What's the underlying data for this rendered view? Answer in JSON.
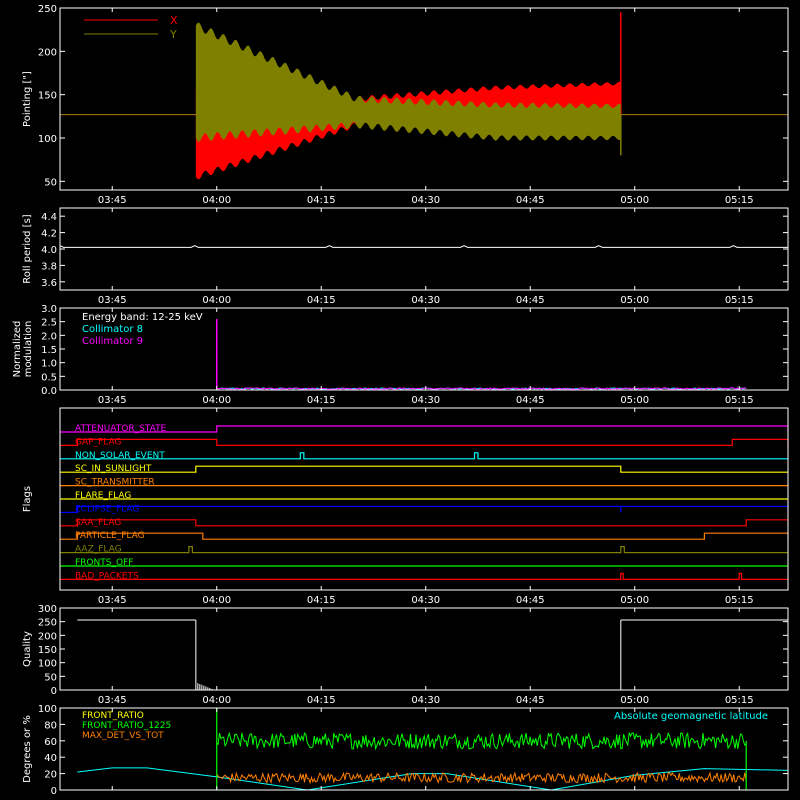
{
  "colors": {
    "background": "#000000",
    "axes": "#ffffff",
    "x_pointing": "#ff0000",
    "y_pointing": "#808000",
    "collimator_8": "#00ffff",
    "collimator_9": "#ff00ff",
    "front_ratio": "#ffff00",
    "front_ratio_1225": "#00ff00",
    "max_det_vs_tot": "#ff8000",
    "geomagnetic_latitude": "#00ffff"
  },
  "time_axis": {
    "tick_labels": [
      "03:45",
      "04:00",
      "04:15",
      "04:30",
      "04:45",
      "05:00",
      "05:15"
    ]
  },
  "chart_data": [
    {
      "type": "line",
      "panel": "pointing",
      "ylabel": "Pointing [\"]",
      "ylim": [
        40,
        250
      ],
      "yticks": [
        50,
        100,
        150,
        200,
        250
      ],
      "xlabels": [
        "03:45",
        "04:00",
        "04:15",
        "04:30",
        "04:45",
        "05:00",
        "05:15"
      ],
      "legend_placement": "top-left",
      "series": [
        {
          "name": "X",
          "baseline": 127,
          "segments": [
            {
              "x": [
                "03:57",
                "04:20",
                "04:40",
                "04:58"
              ],
              "upper": [
                160,
                145,
                158,
                163
              ],
              "lower": [
                55,
                115,
                125,
                128
              ]
            }
          ],
          "spike": {
            "x": "04:58",
            "value": 245
          }
        },
        {
          "name": "Y",
          "baseline": 127,
          "segments": [
            {
              "x": [
                "03:57",
                "04:20",
                "04:40",
                "04:58"
              ],
              "upper": [
                230,
                145,
                138,
                137
              ],
              "lower": [
                100,
                115,
                100,
                100
              ]
            }
          ],
          "spike": {
            "x": "04:58",
            "value": 80
          }
        }
      ]
    },
    {
      "type": "line",
      "panel": "roll_period",
      "ylabel": "Roll period [s]",
      "ylim": [
        3.5,
        4.5
      ],
      "yticks": [
        "3.6",
        "3.8",
        "4.0",
        "4.2",
        "4.4"
      ],
      "xlabels": [
        "03:45",
        "04:00",
        "04:15",
        "04:30",
        "04:45",
        "05:00",
        "05:15"
      ],
      "series": [
        {
          "values_approx": 4.02
        }
      ]
    },
    {
      "type": "line",
      "panel": "modulation",
      "ylabel": [
        "Normalized",
        "modulation"
      ],
      "ylim": [
        0,
        3.0
      ],
      "yticks": [
        "0.0",
        "0.5",
        "1.0",
        "1.5",
        "2.0",
        "2.5",
        "3.0"
      ],
      "xlabels": [
        "03:45",
        "04:00",
        "04:15",
        "04:30",
        "04:45",
        "05:00",
        "05:15"
      ],
      "annotation": "Energy band: 12-25 keV",
      "series": [
        {
          "name": "Collimator 8",
          "level": 0.05,
          "noise": 0.05,
          "x_range": [
            "04:00",
            "05:16"
          ]
        },
        {
          "name": "Collimator 9",
          "level": 0.05,
          "noise": 0.06,
          "x_range": [
            "04:00",
            "05:16"
          ],
          "spike": {
            "x": "04:00",
            "value": 2.6
          }
        }
      ]
    },
    {
      "type": "step",
      "panel": "flags",
      "ylabel": "Flags",
      "xlabels": [
        "03:45",
        "04:00",
        "04:15",
        "04:30",
        "04:45",
        "05:00",
        "05:15"
      ],
      "flags": [
        {
          "name": "ATTENUATOR_STATE",
          "color": "#ff00ff",
          "high": [
            [
              "04:00",
              "05:22"
            ]
          ]
        },
        {
          "name": "GAP_FLAG",
          "color": "#ff0000",
          "high": [
            [
              "03:40",
              "04:00"
            ],
            [
              "05:14",
              "05:22"
            ]
          ]
        },
        {
          "name": "NON_SOLAR_EVENT",
          "color": "#00ffff",
          "high": [
            [
              "04:12",
              "04:12:30"
            ],
            [
              "04:37",
              "04:37:30"
            ]
          ]
        },
        {
          "name": "SC_IN_SUNLIGHT",
          "color": "#ffff00",
          "high": [
            [
              "03:57",
              "04:58"
            ]
          ]
        },
        {
          "name": "SC_TRANSMITTER",
          "color": "#ff8000",
          "high": []
        },
        {
          "name": "FLARE_FLAG",
          "color": "#ffff00",
          "high": []
        },
        {
          "name": "ECLIPSE_FLAG",
          "color": "#0000ff",
          "high": [
            [
              "03:40",
              "04:58"
            ],
            [
              "04:58",
              "05:22"
            ]
          ],
          "inverted": [
            [
              "03:40",
              "04:58"
            ]
          ]
        },
        {
          "name": "SAA_FLAG",
          "color": "#ff0000",
          "high": [
            [
              "03:40",
              "03:57"
            ],
            [
              "05:16",
              "05:22"
            ]
          ]
        },
        {
          "name": "PARTICLE_FLAG",
          "color": "#ff8000",
          "high": [
            [
              "03:40",
              "03:58"
            ],
            [
              "05:10",
              "05:22"
            ]
          ]
        },
        {
          "name": "AAZ_FLAG",
          "color": "#808000",
          "high": [
            [
              "03:56",
              "03:56:30"
            ],
            [
              "04:58",
              "04:58:30"
            ]
          ]
        },
        {
          "name": "FRONTS_OFF",
          "color": "#00ff00",
          "high": []
        },
        {
          "name": "BAD_PACKETS",
          "color": "#ff0000",
          "high": [
            [
              "04:58",
              "04:58:20"
            ],
            [
              "05:15",
              "05:15:20"
            ]
          ]
        }
      ]
    },
    {
      "type": "line",
      "panel": "quality",
      "ylabel": "Quality",
      "ylim": [
        0,
        300
      ],
      "yticks": [
        0,
        50,
        100,
        150,
        200,
        250,
        300
      ],
      "xlabels": [
        "03:45",
        "04:00",
        "04:15",
        "04:30",
        "04:45",
        "05:00",
        "05:15"
      ],
      "series": [
        {
          "segments": [
            {
              "x": [
                "03:40",
                "03:57"
              ],
              "value": 256
            },
            {
              "x": [
                "03:57",
                "04:58"
              ],
              "value": 0
            },
            {
              "x": [
                "04:58",
                "05:22"
              ],
              "value": 256
            }
          ]
        }
      ]
    },
    {
      "type": "line",
      "panel": "ratios",
      "ylabel": "Degrees or %",
      "ylim": [
        0,
        100
      ],
      "yticks": [
        0,
        20,
        40,
        60,
        80,
        100
      ],
      "legend_placement": "top-left",
      "annotation": "Absolute geomagnetic latitude",
      "series": [
        {
          "name": "FRONT_RATIO",
          "level": 0
        },
        {
          "name": "FRONT_RATIO_1225",
          "level": 60,
          "noise": 10,
          "x_range": [
            "04:00",
            "05:16"
          ]
        },
        {
          "name": "MAX_DET_VS_TOT",
          "level": 15,
          "noise": 6,
          "x_range": [
            "04:00",
            "05:16"
          ]
        },
        {
          "name": "Absolute geomagnetic latitude",
          "points": [
            [
              "03:40",
              22
            ],
            [
              "03:45",
              27
            ],
            [
              "03:50",
              27
            ],
            [
              "04:00",
              16
            ],
            [
              "04:13",
              0
            ],
            [
              "04:28",
              20
            ],
            [
              "04:33",
              20
            ],
            [
              "04:48",
              0
            ],
            [
              "05:00",
              18
            ],
            [
              "05:10",
              26
            ],
            [
              "05:22",
              24
            ]
          ]
        }
      ]
    }
  ]
}
